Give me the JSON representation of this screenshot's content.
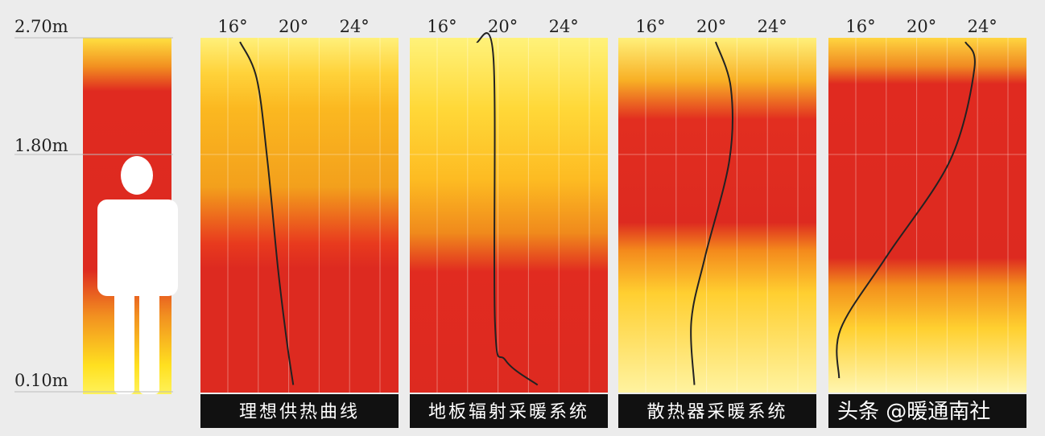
{
  "heights": [
    "2.70m",
    "1.80m",
    "0.10m"
  ],
  "panels": [
    {
      "ticks": [
        "16°",
        "20°",
        "24°"
      ],
      "caption": "理想供热曲线",
      "curve": [
        [
          16.8,
          2.67
        ],
        [
          17.9,
          2.4
        ],
        [
          18.6,
          1.8
        ],
        [
          19.3,
          1.0
        ],
        [
          19.9,
          0.45
        ],
        [
          20.3,
          0.15
        ]
      ]
    },
    {
      "ticks": [
        "16°",
        "20°",
        "24°"
      ],
      "caption": "地板辐射采暖系统",
      "curve": [
        [
          18.6,
          2.67
        ],
        [
          19.7,
          2.55
        ],
        [
          19.8,
          0.61
        ],
        [
          20.5,
          0.33
        ],
        [
          22.6,
          0.15
        ]
      ]
    },
    {
      "ticks": [
        "16°",
        "20°",
        "24°"
      ],
      "caption": "散热器采暖系统",
      "curve": [
        [
          20.6,
          2.67
        ],
        [
          21.6,
          2.33
        ],
        [
          21.5,
          1.8
        ],
        [
          19.9,
          1.09
        ],
        [
          19.0,
          0.62
        ],
        [
          19.2,
          0.15
        ]
      ]
    },
    {
      "ticks": [
        "16°",
        "20°",
        "24°"
      ],
      "caption": "",
      "curve": [
        [
          23.2,
          2.67
        ],
        [
          23.8,
          2.48
        ],
        [
          22.2,
          1.8
        ],
        [
          18.0,
          1.09
        ],
        [
          15.0,
          0.56
        ],
        [
          14.9,
          0.2
        ]
      ]
    }
  ],
  "watermark": "头条 @暖通南社"
}
